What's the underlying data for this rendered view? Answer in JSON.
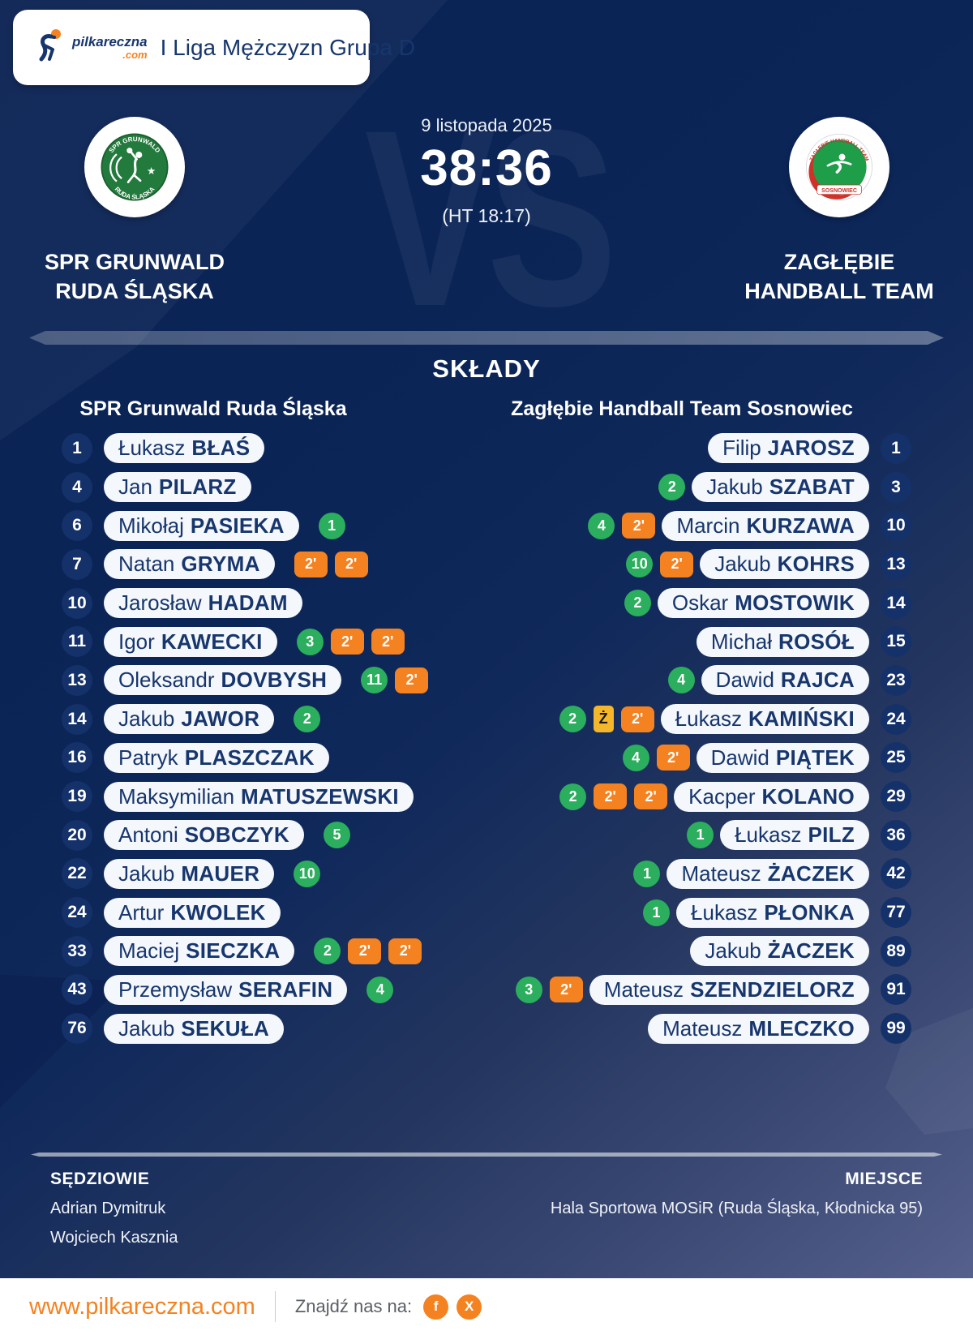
{
  "header": {
    "league": "I Liga Mężczyzn Grupa D",
    "brand": {
      "name": "pilkareczna",
      "tld": ".com"
    }
  },
  "match": {
    "date": "9 listopada 2025",
    "score": "38:36",
    "halftime": "(HT 18:17)",
    "vs_watermark": "VS",
    "home": {
      "name_line1": "SPR GRUNWALD",
      "name_line2": "RUDA ŚLĄSKA",
      "logo_top": "SPR GRUNWALD",
      "logo_bottom": "RUDA ŚLĄSKA"
    },
    "away": {
      "name_line1": "ZAGŁĘBIE",
      "name_line2": "HANDBALL TEAM",
      "logo_top": "ZAGŁĘBIE HANDBALL TEAM",
      "logo_ribbon": "SOSNOWIEC"
    }
  },
  "lineups": {
    "title": "SKŁADY",
    "badge_labels": {
      "two_min": "2'",
      "yellow": "Ż"
    },
    "home": {
      "header": "SPR Grunwald Ruda Śląska",
      "players": [
        {
          "number": "1",
          "first": "Łukasz",
          "last": "BŁAŚ",
          "goals": null,
          "yellow": false,
          "two_min": 0
        },
        {
          "number": "4",
          "first": "Jan",
          "last": "PILARZ",
          "goals": null,
          "yellow": false,
          "two_min": 0
        },
        {
          "number": "6",
          "first": "Mikołaj",
          "last": "PASIEKA",
          "goals": "1",
          "yellow": false,
          "two_min": 0
        },
        {
          "number": "7",
          "first": "Natan",
          "last": "GRYMA",
          "goals": null,
          "yellow": false,
          "two_min": 2
        },
        {
          "number": "10",
          "first": "Jarosław",
          "last": "HADAM",
          "goals": null,
          "yellow": false,
          "two_min": 0
        },
        {
          "number": "11",
          "first": "Igor",
          "last": "KAWECKI",
          "goals": "3",
          "yellow": false,
          "two_min": 2
        },
        {
          "number": "13",
          "first": "Oleksandr",
          "last": "DOVBYSH",
          "goals": "11",
          "yellow": false,
          "two_min": 1
        },
        {
          "number": "14",
          "first": "Jakub",
          "last": "JAWOR",
          "goals": "2",
          "yellow": false,
          "two_min": 0
        },
        {
          "number": "16",
          "first": "Patryk",
          "last": "PLASZCZAK",
          "goals": null,
          "yellow": false,
          "two_min": 0
        },
        {
          "number": "19",
          "first": "Maksymilian",
          "last": "MATUSZEWSKI",
          "goals": null,
          "yellow": false,
          "two_min": 0
        },
        {
          "number": "20",
          "first": "Antoni",
          "last": "SOBCZYK",
          "goals": "5",
          "yellow": false,
          "two_min": 0
        },
        {
          "number": "22",
          "first": "Jakub",
          "last": "MAUER",
          "goals": "10",
          "yellow": false,
          "two_min": 0
        },
        {
          "number": "24",
          "first": "Artur",
          "last": "KWOLEK",
          "goals": null,
          "yellow": false,
          "two_min": 0
        },
        {
          "number": "33",
          "first": "Maciej",
          "last": "SIECZKA",
          "goals": "2",
          "yellow": false,
          "two_min": 2
        },
        {
          "number": "43",
          "first": "Przemysław",
          "last": "SERAFIN",
          "goals": "4",
          "yellow": false,
          "two_min": 0
        },
        {
          "number": "76",
          "first": "Jakub",
          "last": "SEKUŁA",
          "goals": null,
          "yellow": false,
          "two_min": 0
        }
      ]
    },
    "away": {
      "header": "Zagłębie Handball Team Sosnowiec",
      "players": [
        {
          "number": "1",
          "first": "Filip",
          "last": "JAROSZ",
          "goals": null,
          "yellow": false,
          "two_min": 0
        },
        {
          "number": "3",
          "first": "Jakub",
          "last": "SZABAT",
          "goals": "2",
          "yellow": false,
          "two_min": 0
        },
        {
          "number": "10",
          "first": "Marcin",
          "last": "KURZAWA",
          "goals": "4",
          "yellow": false,
          "two_min": 1
        },
        {
          "number": "13",
          "first": "Jakub",
          "last": "KOHRS",
          "goals": "10",
          "yellow": false,
          "two_min": 1
        },
        {
          "number": "14",
          "first": "Oskar",
          "last": "MOSTOWIK",
          "goals": "2",
          "yellow": false,
          "two_min": 0
        },
        {
          "number": "15",
          "first": "Michał",
          "last": "ROSÓŁ",
          "goals": null,
          "yellow": false,
          "two_min": 0
        },
        {
          "number": "23",
          "first": "Dawid",
          "last": "RAJCA",
          "goals": "4",
          "yellow": false,
          "two_min": 0
        },
        {
          "number": "24",
          "first": "Łukasz",
          "last": "KAMIŃSKI",
          "goals": "2",
          "yellow": true,
          "two_min": 1
        },
        {
          "number": "25",
          "first": "Dawid",
          "last": "PIĄTEK",
          "goals": "4",
          "yellow": false,
          "two_min": 1
        },
        {
          "number": "29",
          "first": "Kacper",
          "last": "KOLANO",
          "goals": "2",
          "yellow": false,
          "two_min": 2
        },
        {
          "number": "36",
          "first": "Łukasz",
          "last": "PILZ",
          "goals": "1",
          "yellow": false,
          "two_min": 0
        },
        {
          "number": "42",
          "first": "Mateusz",
          "last": "ŻACZEK",
          "goals": "1",
          "yellow": false,
          "two_min": 0
        },
        {
          "number": "77",
          "first": "Łukasz",
          "last": "PŁONKA",
          "goals": "1",
          "yellow": false,
          "two_min": 0
        },
        {
          "number": "89",
          "first": "Jakub",
          "last": "ŻACZEK",
          "goals": null,
          "yellow": false,
          "two_min": 0
        },
        {
          "number": "91",
          "first": "Mateusz",
          "last": "SZENDZIELORZ",
          "goals": "3",
          "yellow": false,
          "two_min": 1
        },
        {
          "number": "99",
          "first": "Mateusz",
          "last": "MLECZKO",
          "goals": null,
          "yellow": false,
          "two_min": 0
        }
      ]
    }
  },
  "footer_info": {
    "referees_label": "SĘDZIOWIE",
    "referees": [
      "Adrian Dymitruk",
      "Wojciech Kasznia"
    ],
    "venue_label": "MIEJSCE",
    "venue": "Hala Sportowa MOSiR (Ruda Śląska, Kłodnicka 95)"
  },
  "footer": {
    "website": "www.pilkareczna.com",
    "find_us": "Znajdź nas na:",
    "socials": [
      {
        "name": "facebook",
        "glyph": "f"
      },
      {
        "name": "x",
        "glyph": "X"
      }
    ]
  },
  "colors": {
    "accent_orange": "#f58220",
    "goal_green": "#2bae5d",
    "yellow_card": "#f4b62a",
    "navy": "#17366d",
    "pill_bg": "#f4f7fb",
    "num_bg": "#15316a"
  }
}
